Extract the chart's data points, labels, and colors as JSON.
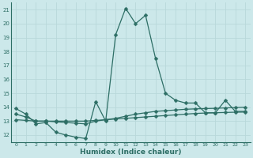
{
  "xlabel": "Humidex (Indice chaleur)",
  "bg_color": "#cce8ea",
  "line_color": "#2d6e65",
  "grid_color": "#b8d8da",
  "xlim": [
    -0.5,
    23.5
  ],
  "ylim": [
    11.5,
    21.5
  ],
  "xticks": [
    0,
    1,
    2,
    3,
    4,
    5,
    6,
    7,
    8,
    9,
    10,
    11,
    12,
    13,
    14,
    15,
    16,
    17,
    18,
    19,
    20,
    21,
    22,
    23
  ],
  "yticks": [
    12,
    13,
    14,
    15,
    16,
    17,
    18,
    19,
    20,
    21
  ],
  "line1_x": [
    0,
    1,
    2,
    3,
    4,
    5,
    6,
    7,
    8,
    9,
    10,
    11,
    12,
    13,
    14,
    15,
    16,
    17,
    18,
    19,
    20,
    21,
    22,
    23
  ],
  "line1_y": [
    13.9,
    13.5,
    12.8,
    12.9,
    12.2,
    12.0,
    11.85,
    11.75,
    14.4,
    13.0,
    19.2,
    21.1,
    20.0,
    20.6,
    17.5,
    15.0,
    14.5,
    14.3,
    14.3,
    13.6,
    13.6,
    14.5,
    13.7,
    13.7
  ],
  "line2_x": [
    0,
    1,
    2,
    3,
    4,
    5,
    6,
    7,
    8,
    9,
    10,
    11,
    12,
    13,
    14,
    15,
    16,
    17,
    18,
    19,
    20,
    21,
    22,
    23
  ],
  "line2_y": [
    13.5,
    13.3,
    13.0,
    13.0,
    12.95,
    12.9,
    12.85,
    12.8,
    13.0,
    13.1,
    13.2,
    13.35,
    13.5,
    13.6,
    13.7,
    13.75,
    13.8,
    13.85,
    13.88,
    13.9,
    13.92,
    13.95,
    13.97,
    14.0
  ],
  "line3_x": [
    0,
    1,
    2,
    3,
    4,
    5,
    6,
    7,
    8,
    9,
    10,
    11,
    12,
    13,
    14,
    15,
    16,
    17,
    18,
    19,
    20,
    21,
    22,
    23
  ],
  "line3_y": [
    13.1,
    13.05,
    13.0,
    13.0,
    13.0,
    13.0,
    13.0,
    13.0,
    13.05,
    13.1,
    13.15,
    13.2,
    13.25,
    13.3,
    13.35,
    13.4,
    13.45,
    13.5,
    13.55,
    13.58,
    13.6,
    13.62,
    13.64,
    13.65
  ],
  "markersize": 2.5,
  "linewidth": 0.9
}
